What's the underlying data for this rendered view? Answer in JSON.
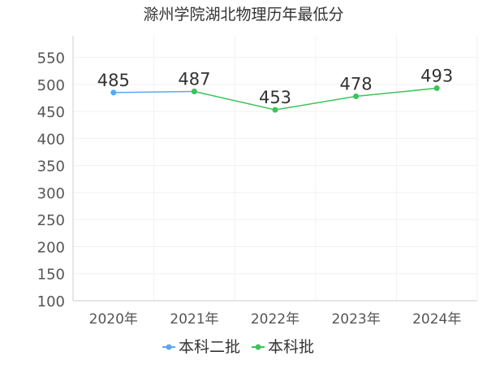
{
  "chart_data": {
    "type": "line",
    "title": "滁州学院湖北物理历年最低分",
    "categories": [
      "2020年",
      "2021年",
      "2022年",
      "2023年",
      "2024年"
    ],
    "yticks": [
      100,
      150,
      200,
      250,
      300,
      350,
      400,
      450,
      500,
      550
    ],
    "ylim": [
      100,
      590
    ],
    "grid": true,
    "legend_position": "bottom-center",
    "series": [
      {
        "name": "本科二批",
        "color": "#5aa7ef",
        "values": [
          485,
          487,
          null,
          null,
          null
        ]
      },
      {
        "name": "本科批",
        "color": "#3cc45a",
        "values": [
          null,
          487,
          453,
          478,
          493
        ]
      }
    ],
    "data_labels": [
      {
        "category_index": 0,
        "value": 485,
        "text": "485"
      },
      {
        "category_index": 1,
        "value": 487,
        "text": "487"
      },
      {
        "category_index": 2,
        "value": 453,
        "text": "453"
      },
      {
        "category_index": 3,
        "value": 478,
        "text": "478"
      },
      {
        "category_index": 4,
        "value": 493,
        "text": "493"
      }
    ]
  }
}
